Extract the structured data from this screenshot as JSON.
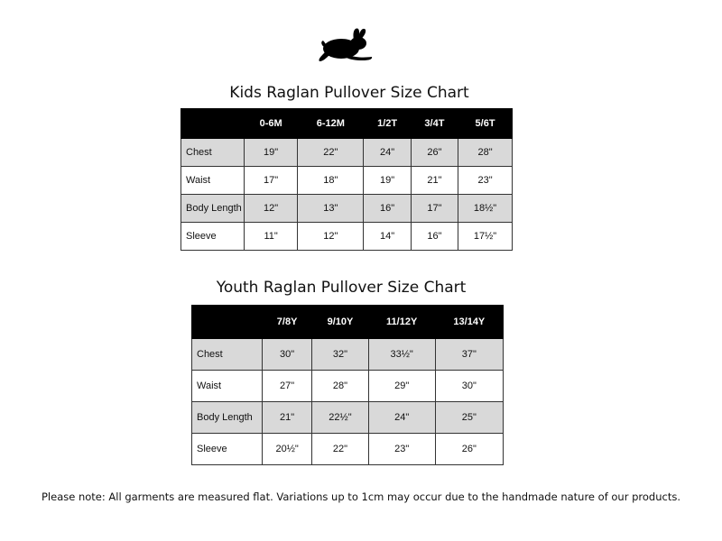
{
  "kids": {
    "title": "Kids Raglan Pullover Size Chart",
    "columns": [
      "",
      "0-6M",
      "6-12M",
      "1/2T",
      "3/4T",
      "5/6T"
    ],
    "rows": [
      {
        "label": "Chest",
        "values": [
          "19\"",
          "22\"",
          "24\"",
          "26\"",
          "28\""
        ]
      },
      {
        "label": "Waist",
        "values": [
          "17\"",
          "18\"",
          "19\"",
          "21\"",
          "23\""
        ]
      },
      {
        "label": "Body Length",
        "values": [
          "12\"",
          "13\"",
          "16\"",
          "17\"",
          "18½\""
        ]
      },
      {
        "label": "Sleeve",
        "values": [
          "11\"",
          "12\"",
          "14\"",
          "16\"",
          "17½\""
        ]
      }
    ]
  },
  "youth": {
    "title": "Youth Raglan Pullover Size Chart",
    "columns": [
      "",
      "7/8Y",
      "9/10Y",
      "11/12Y",
      "13/14Y"
    ],
    "rows": [
      {
        "label": "Chest",
        "values": [
          "30\"",
          "32\"",
          "33½\"",
          "37\""
        ]
      },
      {
        "label": "Waist",
        "values": [
          "27\"",
          "28\"",
          "29\"",
          "30\""
        ]
      },
      {
        "label": "Body Length",
        "values": [
          "21\"",
          "22½\"",
          "24\"",
          "25\""
        ]
      },
      {
        "label": "Sleeve",
        "values": [
          "20½\"",
          "22\"",
          "23\"",
          "26\""
        ]
      }
    ]
  },
  "note": "Please note: All garments are measured flat. Variations up to 1cm may occur due to the handmade nature of our products.",
  "logo": {
    "icon": "rabbit-silhouette-icon"
  },
  "colors": {
    "header_bg": "#000000",
    "shaded_row": "#d9d9d9"
  }
}
